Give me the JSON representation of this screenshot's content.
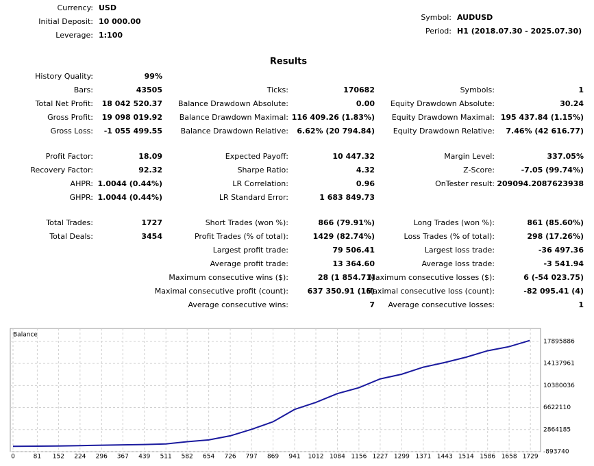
{
  "header": {
    "left": [
      {
        "label": "Currency:",
        "value": "USD"
      },
      {
        "label": "Initial Deposit:",
        "value": "10 000.00"
      },
      {
        "label": "Leverage:",
        "value": "1:100"
      }
    ],
    "right": [
      {
        "label": "Symbol:",
        "value": "AUDUSD"
      },
      {
        "label": "Period:",
        "value": "H1 (2018.07.30 - 2025.07.30)"
      }
    ]
  },
  "results": {
    "title": "Results",
    "groups": [
      [
        [
          {
            "label": "History Quality:",
            "value": "99%"
          },
          null,
          null
        ],
        [
          {
            "label": "Bars:",
            "value": "43505"
          },
          {
            "label": "Ticks:",
            "value": "170682"
          },
          {
            "label": "Symbols:",
            "value": "1"
          }
        ],
        [
          {
            "label": "Total Net Profit:",
            "value": "18 042 520.37"
          },
          {
            "label": "Balance Drawdown Absolute:",
            "value": "0.00"
          },
          {
            "label": "Equity Drawdown Absolute:",
            "value": "30.24"
          }
        ],
        [
          {
            "label": "Gross Profit:",
            "value": "19 098 019.92"
          },
          {
            "label": "Balance Drawdown Maximal:",
            "value": "116 409.26 (1.83%)"
          },
          {
            "label": "Equity Drawdown Maximal:",
            "value": "195 437.84 (1.15%)"
          }
        ],
        [
          {
            "label": "Gross Loss:",
            "value": "-1 055 499.55"
          },
          {
            "label": "Balance Drawdown Relative:",
            "value": "6.62% (20 794.84)"
          },
          {
            "label": "Equity Drawdown Relative:",
            "value": "7.46% (42 616.77)"
          }
        ]
      ],
      [
        [
          {
            "label": "Profit Factor:",
            "value": "18.09"
          },
          {
            "label": "Expected Payoff:",
            "value": "10 447.32"
          },
          {
            "label": "Margin Level:",
            "value": "337.05%"
          }
        ],
        [
          {
            "label": "Recovery Factor:",
            "value": "92.32"
          },
          {
            "label": "Sharpe Ratio:",
            "value": "4.32"
          },
          {
            "label": "Z-Score:",
            "value": "-7.05 (99.74%)"
          }
        ],
        [
          {
            "label": "AHPR:",
            "value": "1.0044 (0.44%)"
          },
          {
            "label": "LR Correlation:",
            "value": "0.96"
          },
          {
            "label": "OnTester result:",
            "value": "209094.2087623938"
          }
        ],
        [
          {
            "label": "GHPR:",
            "value": "1.0044 (0.44%)"
          },
          {
            "label": "LR Standard Error:",
            "value": "1 683 849.73"
          },
          null
        ]
      ],
      [
        [
          {
            "label": "Total Trades:",
            "value": "1727"
          },
          {
            "label": "Short Trades (won %):",
            "value": "866 (79.91%)"
          },
          {
            "label": "Long Trades (won %):",
            "value": "861 (85.60%)"
          }
        ],
        [
          {
            "label": "Total Deals:",
            "value": "3454"
          },
          {
            "label": "Profit Trades (% of total):",
            "value": "1429 (82.74%)"
          },
          {
            "label": "Loss Trades (% of total):",
            "value": "298 (17.26%)"
          }
        ],
        [
          null,
          {
            "label": "Largest profit trade:",
            "value": "79 506.41"
          },
          {
            "label": "Largest loss trade:",
            "value": "-36 497.36"
          }
        ],
        [
          null,
          {
            "label": "Average profit trade:",
            "value": "13 364.60"
          },
          {
            "label": "Average loss trade:",
            "value": "-3 541.94"
          }
        ],
        [
          null,
          {
            "label": "Maximum consecutive wins ($):",
            "value": "28 (1 854.71)"
          },
          {
            "label": "Maximum consecutive losses ($):",
            "value": "6 (-54 023.75)"
          }
        ],
        [
          null,
          {
            "label": "Maximal consecutive profit (count):",
            "value": "637 350.91 (16)"
          },
          {
            "label": "Maximal consecutive loss (count):",
            "value": "-82 095.41 (4)"
          }
        ],
        [
          null,
          {
            "label": "Average consecutive wins:",
            "value": "7"
          },
          {
            "label": "Average consecutive losses:",
            "value": "1"
          }
        ]
      ]
    ]
  },
  "chart_data": {
    "type": "line",
    "title": "Balance",
    "x": [
      0,
      81,
      152,
      224,
      296,
      367,
      439,
      511,
      582,
      654,
      726,
      797,
      869,
      941,
      1012,
      1084,
      1156,
      1227,
      1299,
      1371,
      1443,
      1514,
      1586,
      1658,
      1727
    ],
    "values": [
      10000,
      40000,
      70000,
      130000,
      200000,
      260000,
      320000,
      420000,
      800000,
      1100000,
      1800000,
      2900000,
      4200000,
      6300000,
      7500000,
      9000000,
      10000000,
      11500000,
      12300000,
      13500000,
      14300000,
      15200000,
      16300000,
      17000000,
      18052520
    ],
    "color": "#1a1a9e",
    "xlim": [
      0,
      1763
    ],
    "ylim": [
      -893740,
      20100000
    ],
    "xticks": [
      0,
      81,
      152,
      224,
      296,
      367,
      439,
      511,
      582,
      654,
      726,
      797,
      869,
      941,
      1012,
      1084,
      1156,
      1227,
      1299,
      1371,
      1443,
      1514,
      1586,
      1658,
      1729
    ],
    "yticks": [
      -893740,
      2864185,
      6622110,
      10380036,
      14137961,
      17895886
    ],
    "grid": true
  }
}
